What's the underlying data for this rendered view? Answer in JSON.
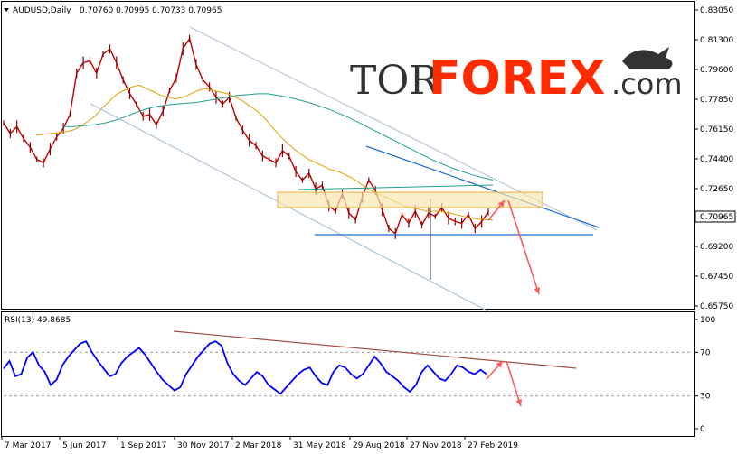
{
  "chart_data": [
    {
      "type": "line",
      "title": "AUDUSD,Daily",
      "ohlc": "0.70760 0.70995 0.70733 0.70965",
      "current_price": "0.70965",
      "y_ticks": [
        "0.83050",
        "0.81300",
        "0.79600",
        "0.77850",
        "0.76150",
        "0.74400",
        "0.72650",
        "0.70965",
        "0.69200",
        "0.67450",
        "0.65750"
      ],
      "ylim": [
        0.6535,
        0.8313
      ],
      "x_labels": [
        "7 Mar 2017",
        "5 Jun 2017",
        "1 Sep 2017",
        "30 Nov 2017",
        "2 Mar 2018",
        "31 May 2018",
        "29 Aug 2018",
        "27 Nov 2018",
        "27 Feb 2019"
      ],
      "series": [
        {
          "name": "",
          "color": "#c00000",
          "values": [
            0.761,
            0.755,
            0.759,
            0.752,
            0.747,
            0.74,
            0.738,
            0.746,
            0.753,
            0.758,
            0.766,
            0.79,
            0.796,
            0.797,
            0.79,
            0.801,
            0.804,
            0.796,
            0.786,
            0.778,
            0.772,
            0.765,
            0.766,
            0.76,
            0.768,
            0.78,
            0.787,
            0.804,
            0.81,
            0.795,
            0.786,
            0.782,
            0.776,
            0.772,
            0.776,
            0.764,
            0.757,
            0.751,
            0.748,
            0.742,
            0.74,
            0.738,
            0.745,
            0.742,
            0.733,
            0.728,
            0.732,
            0.723,
            0.725,
            0.713,
            0.71,
            0.72,
            0.709,
            0.705,
            0.718,
            0.728,
            0.722,
            0.711,
            0.7,
            0.697,
            0.708,
            0.703,
            0.71,
            0.702,
            0.709,
            0.707,
            0.712,
            0.706,
            0.704,
            0.703,
            0.708,
            0.7,
            0.704,
            0.7096
          ]
        },
        {
          "name": "",
          "color": "#e0a000",
          "values": [
            0.754,
            0.7545,
            0.755,
            0.7555,
            0.756,
            0.757,
            0.759,
            0.762,
            0.765,
            0.77,
            0.774,
            0.778,
            0.78,
            0.782,
            0.783,
            0.781,
            0.779,
            0.777,
            0.776,
            0.775,
            0.776,
            0.778,
            0.78,
            0.781,
            0.78,
            0.779,
            0.778,
            0.776,
            0.774,
            0.771,
            0.768,
            0.764,
            0.759,
            0.754,
            0.75,
            0.746,
            0.743,
            0.74,
            0.738,
            0.736,
            0.734,
            0.733,
            0.731,
            0.729,
            0.726,
            0.723,
            0.721,
            0.719,
            0.717,
            0.715,
            0.713,
            0.712,
            0.711,
            0.71,
            0.71,
            0.71,
            0.709,
            0.708,
            0.707,
            0.706,
            0.7055,
            0.705,
            0.705
          ]
        },
        {
          "name": "",
          "color": "#20a090",
          "values": [
            0.759,
            0.759,
            0.7595,
            0.76,
            0.761,
            0.7625,
            0.7645,
            0.767,
            0.769,
            0.7705,
            0.7715,
            0.772,
            0.7725,
            0.773,
            0.774,
            0.775,
            0.776,
            0.777,
            0.7775,
            0.778,
            0.778,
            0.777,
            0.776,
            0.7745,
            0.773,
            0.771,
            0.769,
            0.7665,
            0.764,
            0.761,
            0.758,
            0.755,
            0.752,
            0.749,
            0.746,
            0.743,
            0.74,
            0.7375,
            0.735,
            0.733,
            0.731,
            0.7295,
            0.728
          ]
        }
      ]
    },
    {
      "type": "line",
      "title": "RSI(13) 49.8685",
      "y_ticks": [
        "100",
        "70",
        "30",
        "0"
      ],
      "ylim": [
        0,
        100
      ],
      "levels": [
        70,
        30
      ],
      "series": [
        {
          "name": "",
          "color": "#0000ff",
          "values": [
            55,
            62,
            48,
            50,
            65,
            70,
            58,
            52,
            40,
            45,
            58,
            66,
            72,
            78,
            80,
            70,
            62,
            55,
            48,
            50,
            60,
            66,
            70,
            74,
            68,
            60,
            52,
            45,
            40,
            35,
            38,
            50,
            58,
            66,
            72,
            78,
            80,
            76,
            60,
            50,
            44,
            40,
            46,
            52,
            48,
            40,
            36,
            32,
            38,
            44,
            50,
            54,
            56,
            48,
            42,
            40,
            52,
            58,
            56,
            50,
            46,
            50,
            58,
            66,
            60,
            52,
            48,
            44,
            38,
            34,
            40,
            52,
            58,
            52,
            46,
            44,
            50,
            58,
            56,
            52,
            50,
            54,
            50
          ]
        }
      ]
    }
  ],
  "logo": {
    "tor": "TOR",
    "forex": "FOREX",
    ".com": ".com"
  }
}
